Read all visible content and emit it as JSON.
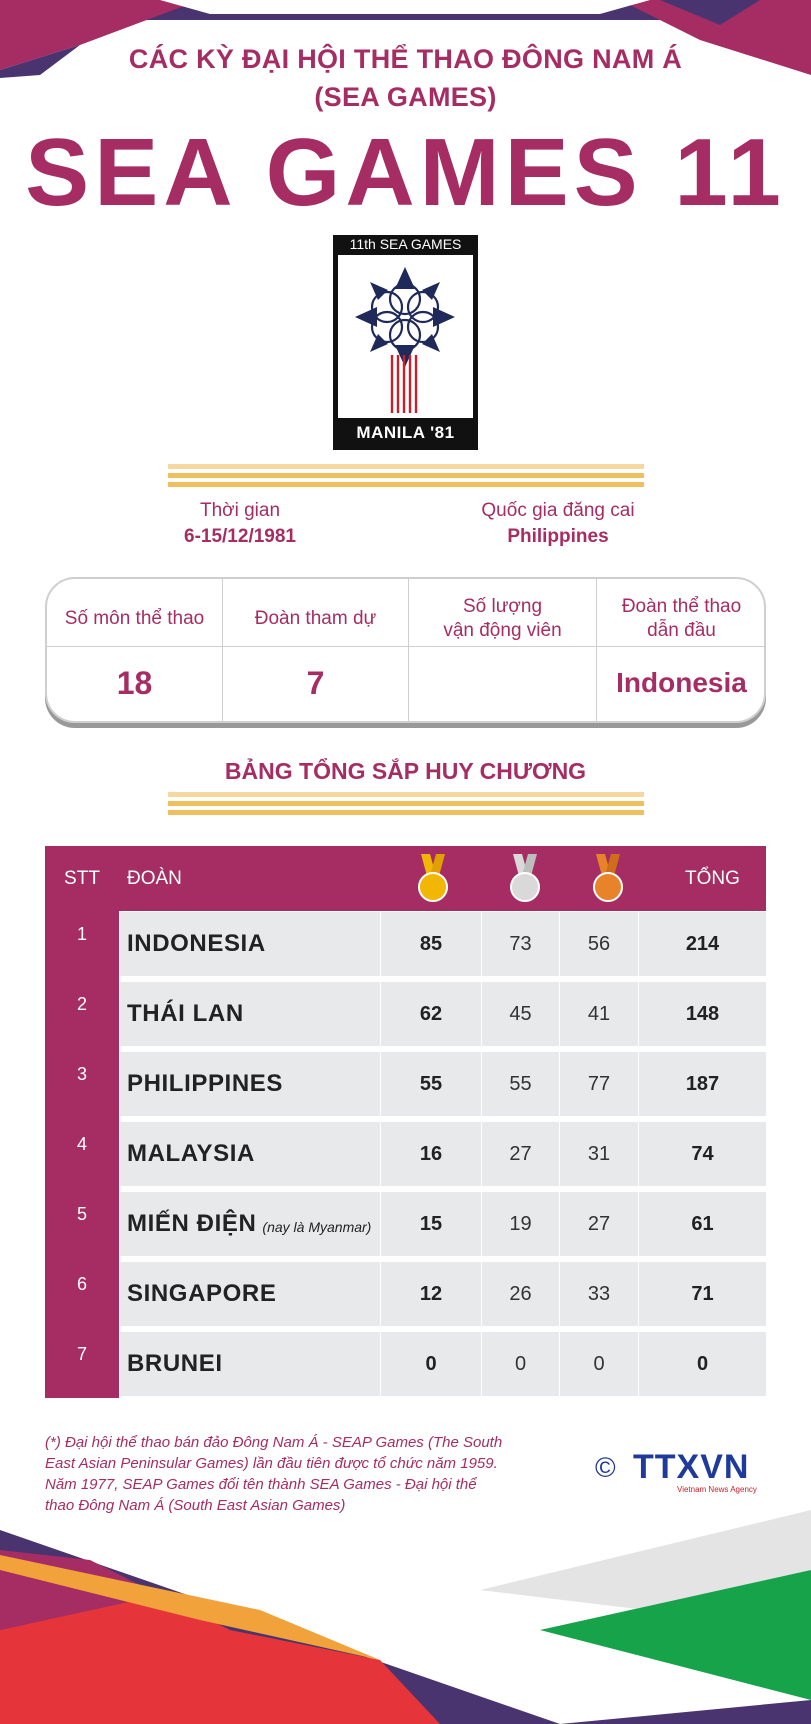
{
  "header": {
    "line1": "CÁC KỲ ĐẠI HỘI THỂ THAO ĐÔNG NAM Á",
    "line2": "(SEA GAMES)",
    "main_title": "SEA GAMES 11"
  },
  "logo": {
    "top_text": "11th SEA GAMES",
    "bottom_text": "MANILA '81"
  },
  "info": {
    "time_label": "Thời gian",
    "time_value": "6-15/12/1981",
    "host_label": "Quốc gia đăng cai",
    "host_value": "Philippines"
  },
  "stats": {
    "sports_label": "Số môn thể thao",
    "sports_value": "18",
    "teams_label": "Đoàn tham dự",
    "teams_value": "7",
    "athletes_label_1": "Số lượng",
    "athletes_label_2": "vận động viên",
    "athletes_value": "",
    "leader_label_1": "Đoàn thể thao",
    "leader_label_2": "dẫn đầu",
    "leader_value": "Indonesia"
  },
  "medal_table": {
    "title": "BẢNG TỔNG SẮP HUY CHƯƠNG",
    "headers": {
      "stt": "STT",
      "team": "ĐOÀN",
      "total": "TỔNG"
    },
    "medal_icons": [
      "gold-medal-icon",
      "silver-medal-icon",
      "bronze-medal-icon"
    ],
    "rows": [
      {
        "stt": "1",
        "name": "INDONESIA",
        "note": "",
        "gold": "85",
        "silver": "73",
        "bronze": "56",
        "total": "214"
      },
      {
        "stt": "2",
        "name": "THÁI LAN",
        "note": "",
        "gold": "62",
        "silver": "45",
        "bronze": "41",
        "total": "148"
      },
      {
        "stt": "3",
        "name": "PHILIPPINES",
        "note": "",
        "gold": "55",
        "silver": "55",
        "bronze": "77",
        "total": "187"
      },
      {
        "stt": "4",
        "name": "MALAYSIA",
        "note": "",
        "gold": "16",
        "silver": "27",
        "bronze": "31",
        "total": "74"
      },
      {
        "stt": "5",
        "name": "MIẾN ĐIỆN",
        "note": "(nay là Myanmar)",
        "gold": "15",
        "silver": "19",
        "bronze": "27",
        "total": "61"
      },
      {
        "stt": "6",
        "name": "SINGAPORE",
        "note": "",
        "gold": "12",
        "silver": "26",
        "bronze": "33",
        "total": "71"
      },
      {
        "stt": "7",
        "name": "BRUNEI",
        "note": "",
        "gold": "0",
        "silver": "0",
        "bronze": "0",
        "total": "0"
      }
    ]
  },
  "footnote": {
    "line1": "(*) Đại hội thể thao bán đảo Đông Nam Á - SEAP Games (The South",
    "line2": "East Asian Peninsular Games) lần đầu tiên được tổ chức năm 1959.",
    "line3": "Năm 1977, SEAP Games đổi tên thành SEA Games - Đại hội thể",
    "line4": "thao Đông Nam Á (South East Asian Games)"
  },
  "brand": {
    "copyright": "©",
    "name": "TTXVN",
    "sub": "Vietnam News Agency"
  },
  "colors": {
    "primary": "#a52d63",
    "purple": "#4a3470",
    "gold": "#f2b705",
    "silver": "#cfcfcf",
    "bronze": "#e8832a",
    "stripe": "#f0c060"
  }
}
